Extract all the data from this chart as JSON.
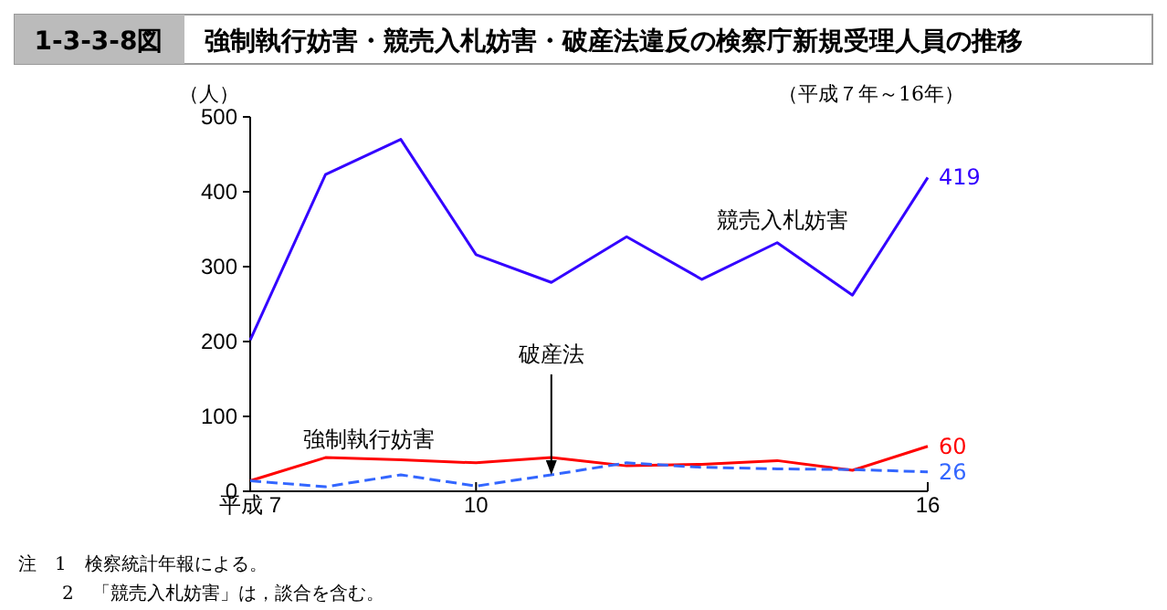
{
  "chart_data": {
    "type": "line",
    "title": "強制執行妨害・競売入札妨害・破産法違反の検察庁新規受理人員の推移",
    "subtitle": "（平成７年～16年）",
    "ylabel": "（人）",
    "annotations": [
      "1-3-3-8図",
      "注　1　検察統計年報による。",
      "2　「競売入札妨害」は，談合を含む。",
      {
        "text": "破産法",
        "x": 11,
        "y": 22
      }
    ],
    "x": [
      7,
      8,
      9,
      10,
      11,
      12,
      13,
      14,
      15,
      16
    ],
    "xlim": [
      7,
      16
    ],
    "xticks": [
      {
        "value": 7,
        "label": "平成 7"
      },
      10,
      16
    ],
    "ylim": [
      0,
      500
    ],
    "yticks": [
      0,
      100,
      200,
      300,
      400,
      500
    ],
    "series": [
      {
        "name": "競売入札妨害",
        "color": "#3300ff",
        "line_style": "solid",
        "values": [
          202,
          423,
          470,
          316,
          279,
          340,
          283,
          332,
          262,
          419
        ],
        "value_labels": [
          null,
          null,
          null,
          null,
          null,
          null,
          null,
          null,
          null,
          "419"
        ]
      },
      {
        "name": "強制執行妨害",
        "color": "#ff0000",
        "line_style": "solid",
        "values": [
          14,
          45,
          42,
          38,
          45,
          34,
          36,
          41,
          28,
          60
        ],
        "value_labels": [
          null,
          null,
          null,
          null,
          null,
          null,
          null,
          null,
          null,
          "60"
        ]
      },
      {
        "color": "#3366ff",
        "line_style": "dashed",
        "values": [
          14,
          6,
          22,
          7,
          22,
          38,
          32,
          30,
          29,
          26
        ],
        "value_labels": [
          null,
          null,
          null,
          null,
          null,
          null,
          null,
          null,
          null,
          "26"
        ]
      }
    ],
    "grid": false,
    "legend": false,
    "marker": "none"
  }
}
